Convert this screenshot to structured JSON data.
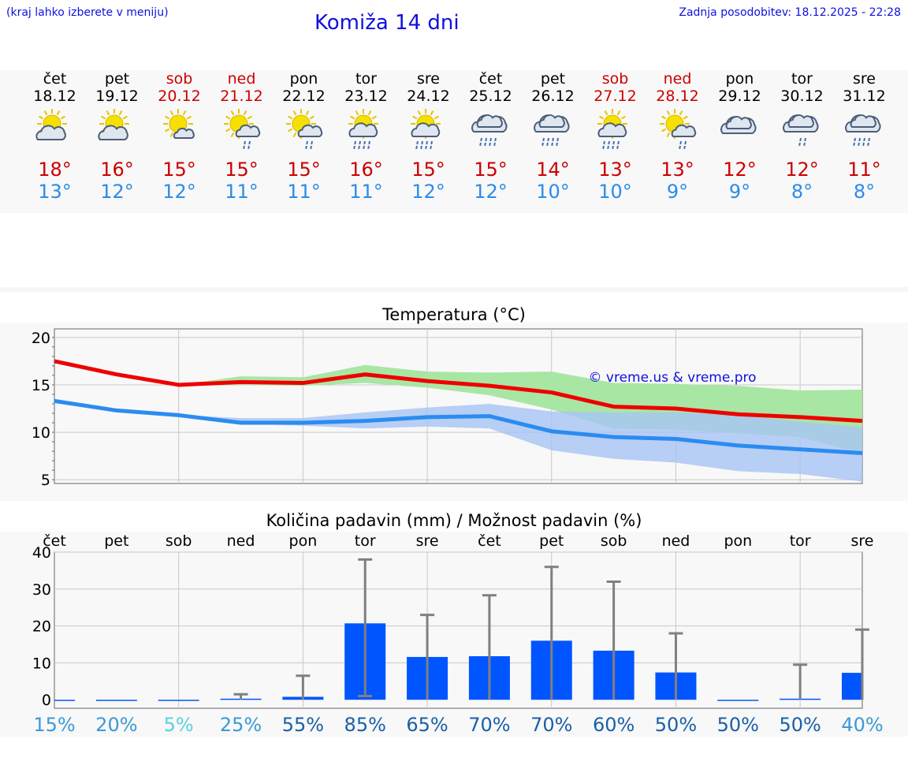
{
  "header": {
    "left_note": "(kraj lahko izberete v meniju)",
    "title": "Komiža 14 dni",
    "updated": "Zadnja posodobitev: 18.12.2025 - 22:28"
  },
  "days": [
    {
      "name": "čet",
      "date": "18.12",
      "weekend": false,
      "icon": "sun-cloud-icon",
      "tmax": "18°",
      "tmin": "13°"
    },
    {
      "name": "pet",
      "date": "19.12",
      "weekend": false,
      "icon": "sun-cloud-icon",
      "tmax": "16°",
      "tmin": "12°"
    },
    {
      "name": "sob",
      "date": "20.12",
      "weekend": true,
      "icon": "sun-small-cloud-icon",
      "tmax": "15°",
      "tmin": "12°"
    },
    {
      "name": "ned",
      "date": "21.12",
      "weekend": true,
      "icon": "sun-cloud-rain-icon",
      "tmax": "15°",
      "tmin": "11°"
    },
    {
      "name": "pon",
      "date": "22.12",
      "weekend": false,
      "icon": "sun-cloud-rain-icon",
      "tmax": "15°",
      "tmin": "11°"
    },
    {
      "name": "tor",
      "date": "23.12",
      "weekend": false,
      "icon": "sun-cloud-heavy-rain-icon",
      "tmax": "16°",
      "tmin": "11°"
    },
    {
      "name": "sre",
      "date": "24.12",
      "weekend": false,
      "icon": "sun-cloud-heavy-rain-icon",
      "tmax": "15°",
      "tmin": "12°"
    },
    {
      "name": "čet",
      "date": "25.12",
      "weekend": false,
      "icon": "cloud-heavy-rain-icon",
      "tmax": "15°",
      "tmin": "12°"
    },
    {
      "name": "pet",
      "date": "26.12",
      "weekend": false,
      "icon": "cloud-heavy-rain-icon",
      "tmax": "14°",
      "tmin": "10°"
    },
    {
      "name": "sob",
      "date": "27.12",
      "weekend": true,
      "icon": "sun-cloud-heavy-rain-icon",
      "tmax": "13°",
      "tmin": "10°"
    },
    {
      "name": "ned",
      "date": "28.12",
      "weekend": true,
      "icon": "sun-cloud-rain-icon",
      "tmax": "13°",
      "tmin": "9°"
    },
    {
      "name": "pon",
      "date": "29.12",
      "weekend": false,
      "icon": "cloudy-icon",
      "tmax": "12°",
      "tmin": "9°"
    },
    {
      "name": "tor",
      "date": "30.12",
      "weekend": false,
      "icon": "cloud-rain-icon",
      "tmax": "12°",
      "tmin": "8°"
    },
    {
      "name": "sre",
      "date": "31.12",
      "weekend": false,
      "icon": "cloud-heavy-rain-icon",
      "tmax": "11°",
      "tmin": "8°"
    }
  ],
  "colors": {
    "max_line": "#ee0000",
    "min_line": "#2a8cf0",
    "max_band": "#a8e6a4",
    "min_band": "#a8c4f4",
    "bar": "#0055ff",
    "whisker": "#808080",
    "weekend": "#cc0000",
    "title_blue": "#1010e0"
  },
  "chart_data": [
    {
      "type": "line",
      "title": "Temperatura (°C)",
      "watermark": "© vreme.us & vreme.pro",
      "xlabel": "",
      "ylabel": "",
      "yticks": [
        5,
        10,
        15,
        20
      ],
      "ylim": [
        4.6,
        20.9
      ],
      "x": [
        0,
        1,
        2,
        3,
        4,
        5,
        6,
        7,
        8,
        9,
        10,
        11,
        12,
        13
      ],
      "series": [
        {
          "name": "max",
          "values": [
            17.5,
            16.1,
            15.0,
            15.3,
            15.2,
            16.1,
            15.4,
            14.9,
            14.2,
            12.7,
            12.5,
            11.9,
            11.6,
            11.2
          ]
        },
        {
          "name": "min",
          "values": [
            13.3,
            12.3,
            11.8,
            11.0,
            11.0,
            11.2,
            11.6,
            11.7,
            10.1,
            9.5,
            9.3,
            8.6,
            8.2,
            7.8
          ]
        }
      ],
      "bands": [
        {
          "name": "max-range",
          "low": [
            17.5,
            16.1,
            15.0,
            15.0,
            14.9,
            15.2,
            14.7,
            13.9,
            12.4,
            10.4,
            10.3,
            9.9,
            9.5,
            7.8
          ],
          "high": [
            17.5,
            16.1,
            15.0,
            15.9,
            15.8,
            17.1,
            16.4,
            16.3,
            16.4,
            15.2,
            15.1,
            14.9,
            14.4,
            14.5
          ]
        },
        {
          "name": "min-range",
          "low": [
            13.3,
            12.3,
            11.8,
            10.9,
            10.7,
            10.4,
            10.6,
            10.4,
            8.1,
            7.2,
            6.8,
            5.9,
            5.6,
            4.8
          ],
          "high": [
            13.3,
            12.3,
            11.8,
            11.5,
            11.5,
            12.1,
            12.6,
            13.0,
            12.2,
            12.1,
            12.1,
            11.8,
            11.1,
            10.5
          ]
        }
      ]
    },
    {
      "type": "bar",
      "title": "Količina padavin (mm) / Možnost padavin (%)",
      "xlabel": "",
      "ylabel": "",
      "categories": [
        "čet",
        "pet",
        "sob",
        "ned",
        "pon",
        "tor",
        "sre",
        "čet",
        "pet",
        "sob",
        "ned",
        "pon",
        "tor",
        "sre"
      ],
      "yticks": [
        0,
        10,
        20,
        30,
        40
      ],
      "ylim": [
        -2.3,
        40
      ],
      "values": [
        0.0,
        0.0,
        0.0,
        0.3,
        0.8,
        20.7,
        11.6,
        11.8,
        16.0,
        13.3,
        7.4,
        0.0,
        0.3,
        7.3
      ],
      "error_high": [
        0.0,
        0.0,
        0.0,
        1.5,
        6.5,
        38.0,
        23.0,
        28.3,
        36.0,
        32.0,
        18.0,
        0.0,
        9.5,
        19.0
      ],
      "error_low": [
        0.0,
        0.0,
        0.0,
        0.0,
        0.0,
        1.0,
        0.0,
        0.0,
        0.0,
        0.0,
        0.0,
        0.0,
        0.0,
        0.0
      ],
      "probability": [
        "15%",
        "20%",
        "5%",
        "25%",
        "55%",
        "85%",
        "65%",
        "70%",
        "70%",
        "60%",
        "50%",
        "50%",
        "50%",
        "40%"
      ],
      "probability_colors": [
        "#3a9ad6",
        "#3a9ad6",
        "#5bd0e0",
        "#3a9ad6",
        "#1a5fa8",
        "#1a5fa8",
        "#1a5fa8",
        "#1a5fa8",
        "#1a5fa8",
        "#1a5fa8",
        "#1a5fa8",
        "#1a5fa8",
        "#1a5fa8",
        "#3a9ad6"
      ]
    }
  ]
}
